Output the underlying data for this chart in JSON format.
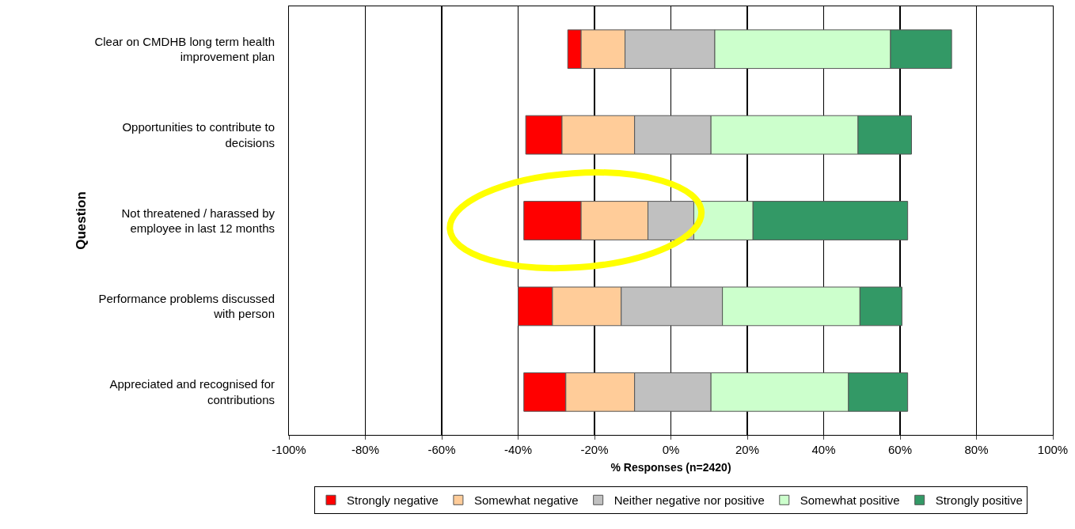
{
  "chart_data": {
    "type": "bar",
    "orientation": "horizontal",
    "xlabel": "% Responses (n=2420)",
    "ylabel": "Question",
    "categories": [
      "Clear on CMDHB long term health improvement plan",
      "Opportunities to contribute to decisions",
      "Not threatened / harassed by employee in last 12 months",
      "Performance problems discussed with person",
      "Appreciated and recognised for contributions"
    ],
    "series": [
      {
        "name": "Strongly negative",
        "color": "#ff0000",
        "base": [
          -27,
          -38,
          -38.5,
          -40,
          -38.5
        ],
        "values": [
          3.5,
          9.5,
          15,
          9,
          11
        ]
      },
      {
        "name": "Somewhat negative",
        "color": "#ffcc99",
        "base": [
          -23.5,
          -28.5,
          -23.5,
          -31,
          -27.5
        ],
        "values": [
          11.5,
          19,
          17.5,
          18,
          18
        ]
      },
      {
        "name": "Neither negative nor positive",
        "color": "#c0c0c0",
        "base": [
          -12,
          -9.5,
          -6,
          -13,
          -9.5
        ],
        "values": [
          23.5,
          20,
          12,
          26.5,
          20
        ]
      },
      {
        "name": "Somewhat positive",
        "color": "#ccffcc",
        "base": [
          11.5,
          10.5,
          6,
          13.5,
          10.5
        ],
        "values": [
          46,
          38.5,
          15.5,
          36,
          36
        ]
      },
      {
        "name": "Strongly positive",
        "color": "#339966",
        "base": [
          57.5,
          49,
          21.5,
          49.5,
          46.5
        ],
        "values": [
          16,
          14,
          40.5,
          11,
          15.5
        ]
      }
    ],
    "xlim": [
      -100,
      100
    ],
    "xticks": [
      {
        "value": -100,
        "label": "-100%"
      },
      {
        "value": -80,
        "label": "-80%"
      },
      {
        "value": -60,
        "label": "-60%"
      },
      {
        "value": -40,
        "label": "-40%"
      },
      {
        "value": -20,
        "label": "-20%"
      },
      {
        "value": 0,
        "label": "0%"
      },
      {
        "value": 20,
        "label": "20%"
      },
      {
        "value": 40,
        "label": "40%"
      },
      {
        "value": 60,
        "label": "60%"
      },
      {
        "value": 80,
        "label": "80%"
      },
      {
        "value": 100,
        "label": "100%"
      }
    ],
    "grid": "x",
    "legend": "bottom"
  }
}
